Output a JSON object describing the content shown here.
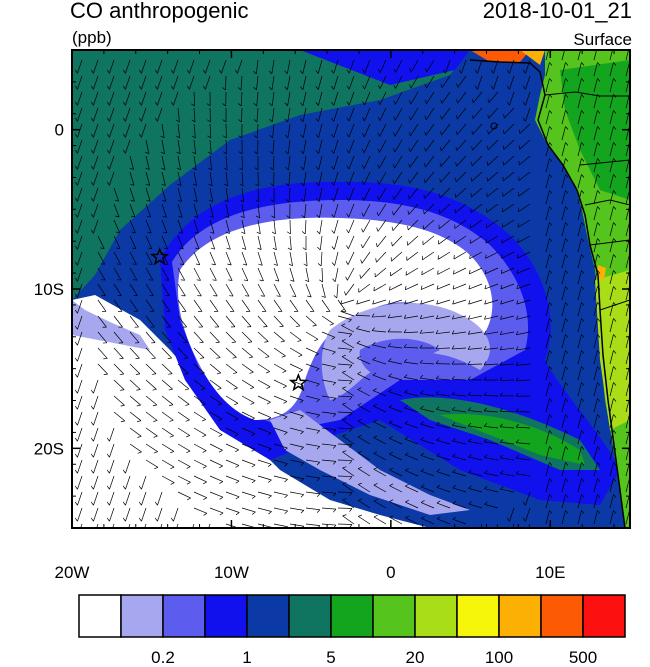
{
  "header": {
    "variable": "CO anthropogenic",
    "units": "(ppb)",
    "datetime": "2018-10-01_21",
    "level": "Surface"
  },
  "axes": {
    "x_ticks": [
      {
        "value": -20,
        "label": "20W"
      },
      {
        "value": -10,
        "label": "10W"
      },
      {
        "value": 0,
        "label": "0"
      },
      {
        "value": 10,
        "label": "10E"
      }
    ],
    "y_ticks": [
      {
        "value": 0,
        "label": "0"
      },
      {
        "value": -10,
        "label": "10S"
      },
      {
        "value": -20,
        "label": "20S"
      }
    ],
    "lon_range": [
      -20,
      15
    ],
    "lat_range": [
      -25,
      5
    ]
  },
  "colorbar": {
    "colors": [
      "#ffffff",
      "#a7a7ef",
      "#5c5cef",
      "#1111ee",
      "#0b3aa6",
      "#0f7560",
      "#14a51e",
      "#55c41c",
      "#a8dd17",
      "#f6f60b",
      "#fcb004",
      "#fc5a05",
      "#fc1010"
    ],
    "labels": [
      {
        "after_box": 2,
        "text": "0.2"
      },
      {
        "after_box": 4,
        "text": "1"
      },
      {
        "after_box": 6,
        "text": "5"
      },
      {
        "after_box": 8,
        "text": "20"
      },
      {
        "after_box": 10,
        "text": "100"
      },
      {
        "after_box": 12,
        "text": "500"
      }
    ]
  },
  "markers": [
    {
      "name": "star-marker",
      "lon": -14.5,
      "lat": -8.0
    },
    {
      "name": "star-marker",
      "lon": -5.8,
      "lat": -15.9
    }
  ]
}
